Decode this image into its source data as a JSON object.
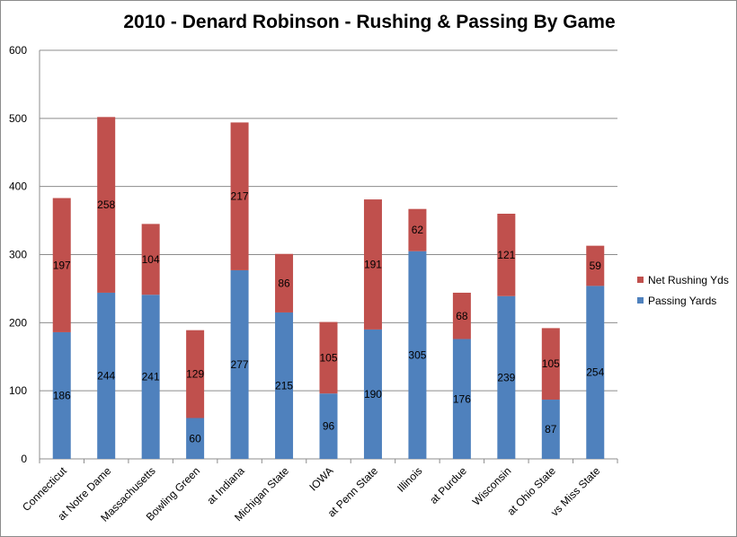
{
  "chart_data": {
    "type": "bar",
    "stacked": true,
    "title": "2010 - Denard Robinson - Rushing & Passing By Game",
    "xlabel": "",
    "ylabel": "",
    "ylim": [
      0,
      600
    ],
    "yticks": [
      0,
      100,
      200,
      300,
      400,
      500,
      600
    ],
    "grid": true,
    "legend_position": "right",
    "categories": [
      "Connecticut",
      "at Notre Dame",
      "Massachusetts",
      "Bowling Green",
      "at Indiana",
      "Michigan State",
      "IOWA",
      "at Penn State",
      "Illinois",
      "at Purdue",
      "Wisconsin",
      "at Ohio State",
      "vs Miss State"
    ],
    "series": [
      {
        "name": "Passing Yards",
        "color": "#4f81bd",
        "values": [
          186,
          244,
          241,
          60,
          277,
          215,
          96,
          190,
          305,
          176,
          239,
          87,
          254
        ]
      },
      {
        "name": "Net Rushing Yds",
        "color": "#c0504d",
        "values": [
          197,
          258,
          104,
          129,
          217,
          86,
          105,
          191,
          62,
          68,
          121,
          105,
          59
        ]
      }
    ]
  }
}
